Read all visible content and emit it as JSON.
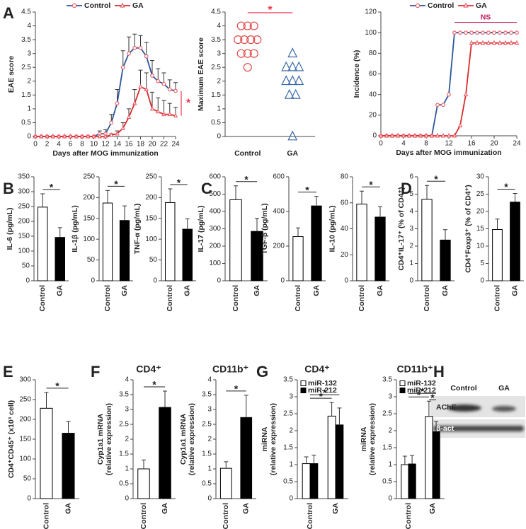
{
  "chart_data": [
    {
      "panel": "A",
      "type": "line",
      "xlabel": "Days after MOG immunization",
      "ylabel": "EAE score",
      "x": [
        0,
        1,
        2,
        3,
        4,
        5,
        6,
        7,
        8,
        9,
        10,
        11,
        12,
        13,
        14,
        15,
        16,
        17,
        18,
        19,
        20,
        21,
        22,
        23,
        24
      ],
      "series": [
        {
          "name": "Control",
          "color": "#2e5597",
          "marker": "circle",
          "marker_color": "#e8606a",
          "values": [
            0,
            0,
            0,
            0,
            0,
            0,
            0,
            0,
            0,
            0,
            0,
            0.1,
            0.1,
            0.5,
            1.2,
            2.5,
            3.0,
            3.2,
            3.2,
            2.9,
            2.2,
            2.0,
            1.9,
            1.7,
            1.65
          ],
          "errors": [
            0,
            0,
            0,
            0,
            0,
            0,
            0,
            0,
            0,
            0,
            0,
            0.1,
            0.15,
            0.3,
            0.5,
            0.6,
            0.6,
            0.5,
            0.45,
            0.5,
            0.55,
            0.45,
            0.4,
            0.35,
            0.3
          ]
        },
        {
          "name": "GA",
          "color": "#d92b2b",
          "marker": "triangle",
          "marker_color": "#e8606a",
          "values": [
            0,
            0,
            0,
            0,
            0,
            0,
            0,
            0,
            0,
            0,
            0,
            0,
            0,
            0.05,
            0.1,
            0.3,
            0.7,
            1.2,
            1.8,
            1.7,
            1.0,
            0.9,
            0.8,
            0.8,
            0.75
          ],
          "errors": [
            0,
            0,
            0,
            0,
            0,
            0,
            0,
            0,
            0,
            0,
            0,
            0,
            0,
            0.05,
            0.1,
            0.2,
            0.3,
            0.5,
            0.6,
            0.6,
            0.6,
            0.5,
            0.5,
            0.4,
            0.3
          ]
        }
      ],
      "xlim": [
        0,
        24
      ],
      "xticks": [
        0,
        2,
        4,
        6,
        8,
        10,
        12,
        14,
        16,
        18,
        20,
        22,
        24
      ],
      "ylim": [
        0,
        4.5
      ],
      "yticks": [
        0,
        0.5,
        1,
        1.5,
        2,
        2.5,
        3,
        3.5,
        4,
        4.5
      ],
      "annotations": [
        "*"
      ],
      "annotation_color": "#e8384f"
    },
    {
      "type": "strip",
      "ylabel": "Maximum EAE score",
      "categories": [
        "Control",
        "GA"
      ],
      "series": [
        {
          "marker": "circle",
          "color": "#e04848",
          "values": [
            4,
            4,
            4,
            3.5,
            3.5,
            3.5,
            3.5,
            3,
            3,
            3,
            2.5
          ]
        },
        {
          "marker": "triangle",
          "color": "#3a6aa8",
          "values": [
            3,
            2.5,
            2.5,
            2.5,
            2,
            2,
            2,
            1.5,
            1.5,
            0
          ]
        }
      ],
      "ylim": [
        0,
        4.5
      ],
      "yticks": [
        0,
        0.5,
        1,
        1.5,
        2,
        2.5,
        3,
        3.5,
        4,
        4.5
      ],
      "annotations": [
        "*"
      ],
      "annotation_color": "#e8384f"
    },
    {
      "type": "line",
      "xlabel": "Days after MOG immunization",
      "ylabel": "Incidence (%)",
      "x": [
        0,
        1,
        2,
        3,
        4,
        5,
        6,
        7,
        8,
        9,
        10,
        11,
        12,
        13,
        14,
        15,
        16,
        17,
        18,
        19,
        20,
        21,
        22,
        23,
        24
      ],
      "series": [
        {
          "name": "Control",
          "color": "#2e5597",
          "marker": "circle",
          "marker_color": "#e8606a",
          "values": [
            0,
            0,
            0,
            0,
            0,
            0,
            0,
            0,
            0,
            0,
            30,
            30,
            40,
            100,
            100,
            100,
            100,
            100,
            100,
            100,
            100,
            100,
            100,
            100,
            100
          ]
        },
        {
          "name": "GA",
          "color": "#d92b2b",
          "marker": "triangle",
          "marker_color": "#e8606a",
          "values": [
            0,
            0,
            0,
            0,
            0,
            0,
            0,
            0,
            0,
            0,
            0,
            0,
            0,
            0,
            10,
            40,
            90,
            90,
            90,
            90,
            90,
            90,
            90,
            90,
            90
          ]
        }
      ],
      "xlim": [
        0,
        24
      ],
      "xticks": [
        0,
        4,
        8,
        12,
        16,
        20,
        24
      ],
      "ylim": [
        0,
        120
      ],
      "yticks": [
        0,
        20,
        40,
        60,
        80,
        100,
        120
      ],
      "annotations": [
        "NS"
      ],
      "annotation_color": "#c2185b"
    },
    {
      "panel": "B",
      "type": "bar",
      "ylabel": "IL-6 (pg/mL)",
      "categories": [
        "Control",
        "GA"
      ],
      "colors": [
        "#ffffff",
        "#000000"
      ],
      "values": [
        248,
        146
      ],
      "errors": [
        45,
        33
      ],
      "ylim": [
        0,
        350
      ],
      "yticks": [
        0,
        50,
        100,
        150,
        200,
        250,
        300,
        350
      ],
      "annotations": [
        "*"
      ]
    },
    {
      "type": "bar",
      "ylabel": "IL-1β (pg/mL)",
      "categories": [
        "Control",
        "GA"
      ],
      "colors": [
        "#ffffff",
        "#000000"
      ],
      "values": [
        187,
        145
      ],
      "errors": [
        30,
        35
      ],
      "ylim": [
        0,
        250
      ],
      "yticks": [
        0,
        50,
        100,
        150,
        200,
        250
      ],
      "annotations": [
        "*"
      ]
    },
    {
      "type": "bar",
      "ylabel": "TNF-α (pg/mL)",
      "categories": [
        "Control",
        "GA"
      ],
      "colors": [
        "#ffffff",
        "#000000"
      ],
      "values": [
        188,
        124
      ],
      "errors": [
        33,
        25
      ],
      "ylim": [
        0,
        250
      ],
      "yticks": [
        0,
        50,
        100,
        150,
        200,
        250
      ],
      "annotations": [
        "*"
      ]
    },
    {
      "panel": "C",
      "type": "bar",
      "ylabel": "IL-17 (pg/mL)",
      "categories": [
        "Control",
        "GA"
      ],
      "colors": [
        "#ffffff",
        "#000000"
      ],
      "values": [
        468,
        285
      ],
      "errors": [
        80,
        75
      ],
      "ylim": [
        0,
        600
      ],
      "yticks": [
        0,
        100,
        200,
        300,
        400,
        500,
        600
      ],
      "annotations": [
        "*"
      ]
    },
    {
      "type": "bar",
      "ylabel": "TGF-β (pg/mL)",
      "categories": [
        "Control",
        "GA"
      ],
      "colors": [
        "#ffffff",
        "#000000"
      ],
      "values": [
        255,
        432
      ],
      "errors": [
        50,
        55
      ],
      "ylim": [
        0,
        600
      ],
      "yticks": [
        0,
        200,
        400,
        600
      ],
      "annotations": [
        "*"
      ]
    },
    {
      "type": "bar",
      "ylabel": "IL-10 (pg/mL)",
      "categories": [
        "Control",
        "GA"
      ],
      "colors": [
        "#ffffff",
        "#000000"
      ],
      "values": [
        59,
        49
      ],
      "errors": [
        10,
        8
      ],
      "ylim": [
        0,
        80
      ],
      "yticks": [
        0,
        20,
        40,
        60,
        80
      ],
      "annotations": [
        "*"
      ]
    },
    {
      "panel": "D",
      "type": "bar",
      "ylabel": "CD4⁺IL-17⁺ (% of CD4⁺)",
      "categories": [
        "Control",
        "GA"
      ],
      "colors": [
        "#ffffff",
        "#000000"
      ],
      "values": [
        4.7,
        2.35
      ],
      "errors": [
        0.8,
        0.6
      ],
      "ylim": [
        0,
        6
      ],
      "yticks": [
        0,
        1,
        2,
        3,
        4,
        5,
        6
      ],
      "annotations": [
        "*"
      ]
    },
    {
      "type": "bar",
      "ylabel": "CD4⁺Foxp3⁺ (% of CD4⁺)",
      "categories": [
        "Control",
        "GA"
      ],
      "colors": [
        "#ffffff",
        "#000000"
      ],
      "values": [
        14.8,
        22.7
      ],
      "errors": [
        3,
        2.5
      ],
      "ylim": [
        0,
        30
      ],
      "yticks": [
        0,
        5,
        10,
        15,
        20,
        25,
        30
      ],
      "annotations": [
        "*"
      ]
    },
    {
      "panel": "E",
      "type": "bar",
      "ylabel": "CD4⁺CD45⁺ (x10³ cell)",
      "categories": [
        "Control",
        "GA"
      ],
      "colors": [
        "#ffffff",
        "#000000"
      ],
      "values": [
        228,
        165
      ],
      "errors": [
        40,
        30
      ],
      "ylim": [
        0,
        300
      ],
      "yticks": [
        0,
        50,
        100,
        150,
        200,
        250,
        300
      ],
      "annotations": [
        "*"
      ]
    },
    {
      "panel": "F",
      "type": "bar",
      "title": "CD4⁺",
      "ylabel": [
        "Cyp1a1 mRNA",
        "(relative expression)"
      ],
      "categories": [
        "Control",
        "GA"
      ],
      "colors": [
        "#ffffff",
        "#000000"
      ],
      "values": [
        1.0,
        3.07
      ],
      "errors": [
        0.3,
        0.55
      ],
      "ylim": [
        0,
        4
      ],
      "yticks": [
        0,
        0.5,
        1,
        1.5,
        2,
        2.5,
        3,
        3.5,
        4
      ],
      "annotations": [
        "*"
      ]
    },
    {
      "type": "bar",
      "title": "CD11b⁺",
      "ylabel": [
        "Cyp1a1 mRNA",
        "(relative expression)"
      ],
      "categories": [
        "Control",
        "GA"
      ],
      "colors": [
        "#ffffff",
        "#000000"
      ],
      "values": [
        1.02,
        2.73
      ],
      "errors": [
        0.22,
        0.75
      ],
      "ylim": [
        0,
        4
      ],
      "yticks": [
        0,
        0.5,
        1,
        1.5,
        2,
        2.5,
        3,
        3.5,
        4
      ],
      "annotations": [
        "*"
      ]
    },
    {
      "panel": "G",
      "type": "grouped_bar",
      "title": "CD4⁺",
      "ylabel": [
        "miRNA",
        "(relative expression)"
      ],
      "categories": [
        "Control",
        "GA"
      ],
      "series": [
        {
          "name": "miR-132",
          "color": "#ffffff",
          "values": [
            1.03,
            2.43
          ],
          "errors": [
            0.2,
            0.4
          ]
        },
        {
          "name": "miR-212",
          "color": "#000000",
          "values": [
            1.03,
            2.17
          ],
          "errors": [
            0.25,
            0.5
          ]
        }
      ],
      "ylim": [
        0,
        3.5
      ],
      "yticks": [
        0,
        0.5,
        1,
        1.5,
        2,
        2.5,
        3,
        3.5
      ],
      "annotations": [
        "*",
        "*"
      ]
    },
    {
      "type": "grouped_bar",
      "title": "CD11b⁺",
      "ylabel": [
        "miRNA",
        "(relative expression)"
      ],
      "categories": [
        "Control",
        "GA"
      ],
      "series": [
        {
          "name": "miR-132",
          "color": "#ffffff",
          "values": [
            1.0,
            2.42
          ],
          "errors": [
            0.25,
            0.45
          ]
        },
        {
          "name": "miR-212",
          "color": "#000000",
          "values": [
            1.02,
            1.97
          ],
          "errors": [
            0.25,
            0.3
          ]
        }
      ],
      "ylim": [
        0,
        3.5
      ],
      "yticks": [
        0,
        0.5,
        1,
        1.5,
        2,
        2.5,
        3,
        3.5
      ],
      "annotations": [
        "*",
        "*",
        "*"
      ]
    }
  ],
  "figure_h": {
    "panel": "H",
    "lanes": [
      "Control",
      "GA"
    ],
    "bands": [
      "AChE",
      "β-act"
    ]
  }
}
